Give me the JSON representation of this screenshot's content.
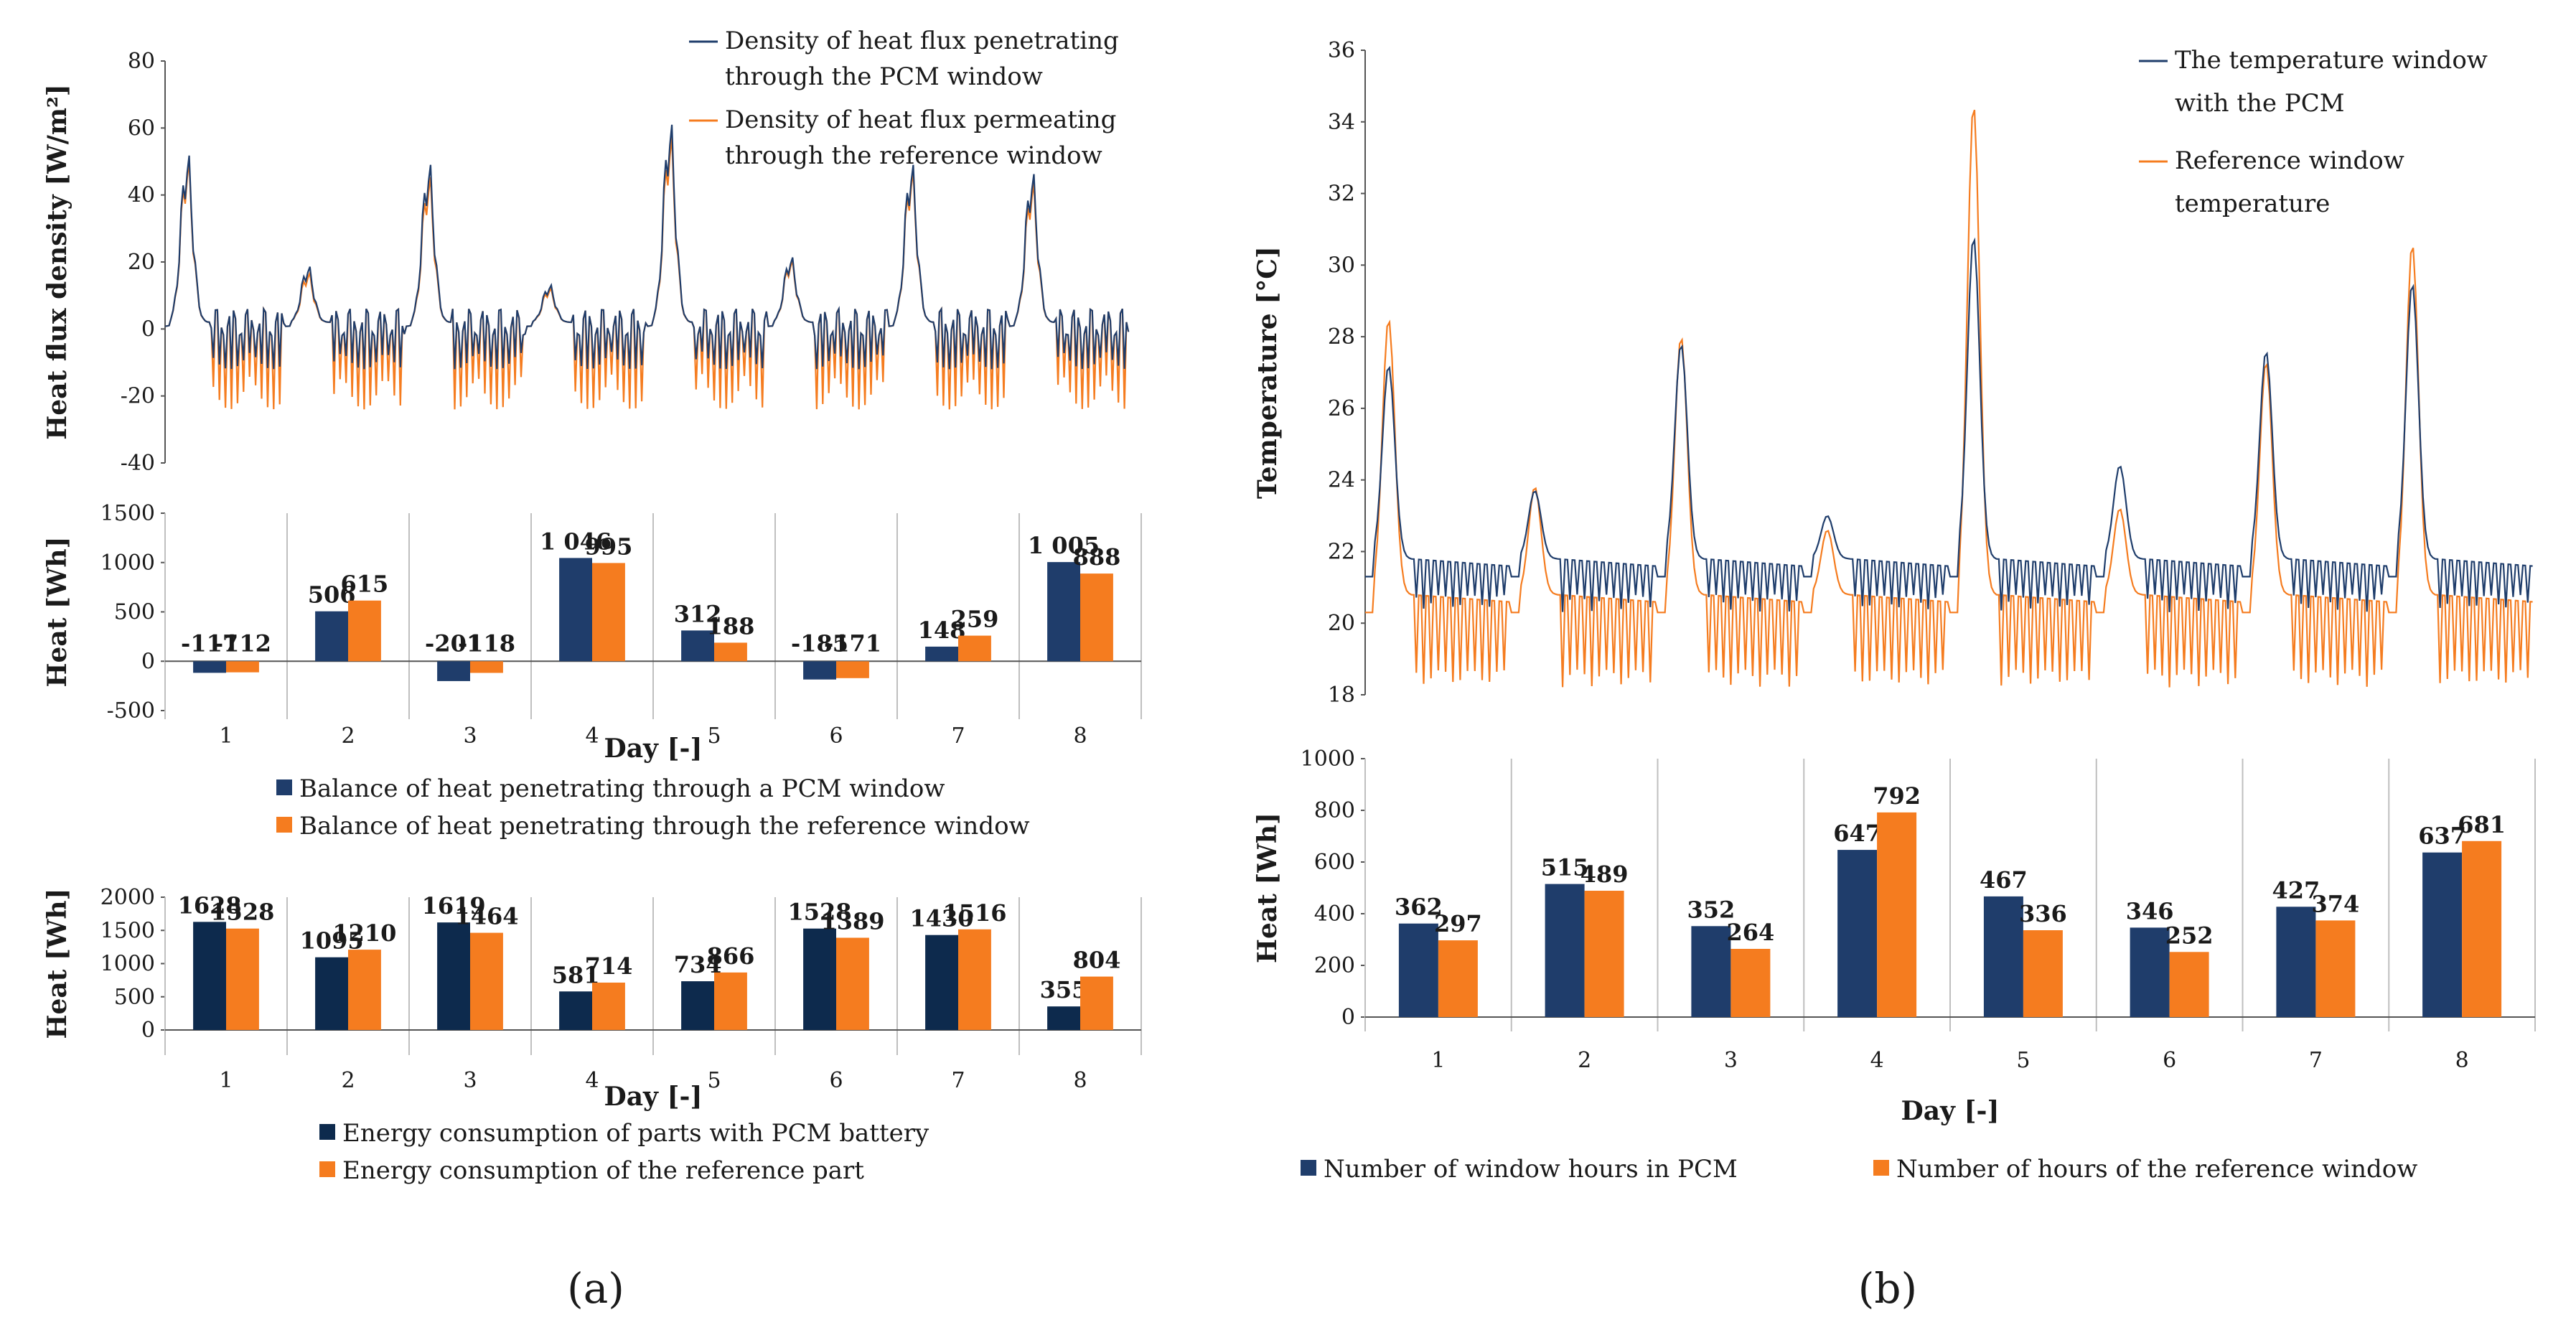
{
  "colors": {
    "pcm": "#1f3d6b",
    "ref": "#f57c1f",
    "dark": "#0d2a4d",
    "grid": "#bfbfbf"
  },
  "captions": [
    "(a)",
    "(b)"
  ],
  "chart_data": [
    {
      "type": "line",
      "panel": "a-top",
      "ylabel": "Heat flux density  [W/m²]",
      "ylim": [
        -40,
        80
      ],
      "yticks": [
        "-40",
        "-20",
        "0",
        "20",
        "40",
        "60",
        "80"
      ],
      "days": 8,
      "legend": [
        "Density of heat flux penetrating through the PCM window",
        "Density of heat flux permeating through the reference window"
      ],
      "legend_lines": [
        [
          "Density of heat flux penetrating",
          "through the PCM window"
        ],
        [
          "Density of heat flux permeating",
          "through the reference window"
        ]
      ],
      "series": [
        {
          "name": "PCM window",
          "day_peaks": [
            56,
            20,
            53,
            14,
            66,
            23,
            53,
            50
          ],
          "night_min": -12
        },
        {
          "name": "Reference window",
          "day_peaks": [
            54,
            18,
            49,
            13,
            62,
            22,
            51,
            47
          ],
          "night_min": -24
        }
      ]
    },
    {
      "type": "bar",
      "panel": "a-middle",
      "xlabel": "Day [-]",
      "ylabel": "Heat  [Wh]",
      "ylim": [
        -500,
        1500
      ],
      "yticks": [
        "-500",
        "0",
        "500",
        "1000",
        "1500"
      ],
      "categories": [
        "1",
        "2",
        "3",
        "4",
        "5",
        "6",
        "7",
        "8"
      ],
      "series": [
        {
          "name": "Balance of heat penetrating through a PCM window",
          "values": [
            -117,
            506,
            -201,
            1046,
            312,
            -185,
            148,
            1005
          ],
          "labels": [
            "-117",
            "506",
            "-201",
            "1 046",
            "312",
            "-185",
            "148",
            "1 005"
          ]
        },
        {
          "name": "Balance of heat penetrating through the reference window",
          "values": [
            -112,
            615,
            -118,
            995,
            188,
            -171,
            259,
            888
          ],
          "labels": [
            "-112",
            "615",
            "-118",
            "995",
            "188",
            "-171",
            "259",
            "888"
          ]
        }
      ]
    },
    {
      "type": "bar",
      "panel": "a-bottom",
      "xlabel": "Day [-]",
      "ylabel": "Heat  [Wh]",
      "ylim": [
        0,
        2000
      ],
      "yticks": [
        "0",
        "500",
        "1000",
        "1500",
        "2000"
      ],
      "categories": [
        "1",
        "2",
        "3",
        "4",
        "5",
        "6",
        "7",
        "8"
      ],
      "series": [
        {
          "name": "Energy consumption of parts with PCM battery",
          "values": [
            1628,
            1095,
            1619,
            581,
            734,
            1528,
            1430,
            355
          ],
          "labels": [
            "1628",
            "1095",
            "1619",
            "581",
            "734",
            "1528",
            "1430",
            "355"
          ]
        },
        {
          "name": "Energy consumption of the reference part",
          "values": [
            1528,
            1210,
            1464,
            714,
            866,
            1389,
            1516,
            804
          ],
          "labels": [
            "1528",
            "1210",
            "1464",
            "714",
            "866",
            "1389",
            "1516",
            "804"
          ]
        }
      ]
    },
    {
      "type": "line",
      "panel": "b-top",
      "ylabel": "Temperature [°C]",
      "ylim": [
        18,
        36
      ],
      "yticks": [
        "18",
        "20",
        "22",
        "24",
        "26",
        "28",
        "30",
        "32",
        "34",
        "36"
      ],
      "days": 8,
      "legend": [
        "The temperature window with the PCM",
        "Reference window temperature"
      ],
      "legend_lines": [
        [
          "The temperature window",
          "with the PCM"
        ],
        [
          "Reference window",
          "temperature"
        ]
      ],
      "series": [
        {
          "name": "PCM window",
          "day_peaks": [
            27.2,
            23.7,
            27.8,
            23.0,
            30.8,
            24.4,
            27.6,
            29.5
          ],
          "night_base": 21.8,
          "night_min": 20.3
        },
        {
          "name": "Reference window",
          "day_peaks": [
            28.5,
            23.8,
            28.0,
            22.6,
            34.5,
            23.2,
            27.3,
            30.6
          ],
          "night_base": 20.8,
          "night_min": 18.2
        }
      ]
    },
    {
      "type": "bar",
      "panel": "b-bottom",
      "xlabel": "Day [-]",
      "ylabel": "Heat [Wh]",
      "ylim": [
        0,
        1000
      ],
      "yticks": [
        "0",
        "200",
        "400",
        "600",
        "800",
        "1000"
      ],
      "categories": [
        "1",
        "2",
        "3",
        "4",
        "5",
        "6",
        "7",
        "8"
      ],
      "series": [
        {
          "name": "Number of window hours in PCM",
          "values": [
            362,
            515,
            352,
            647,
            467,
            346,
            427,
            637
          ],
          "labels": [
            "362",
            "515",
            "352",
            "647",
            "467",
            "346",
            "427",
            "637"
          ]
        },
        {
          "name": "Number of hours of the reference window",
          "values": [
            297,
            489,
            264,
            792,
            336,
            252,
            374,
            681
          ],
          "labels": [
            "297",
            "489",
            "264",
            "792",
            "336",
            "252",
            "374",
            "681"
          ]
        }
      ]
    }
  ]
}
